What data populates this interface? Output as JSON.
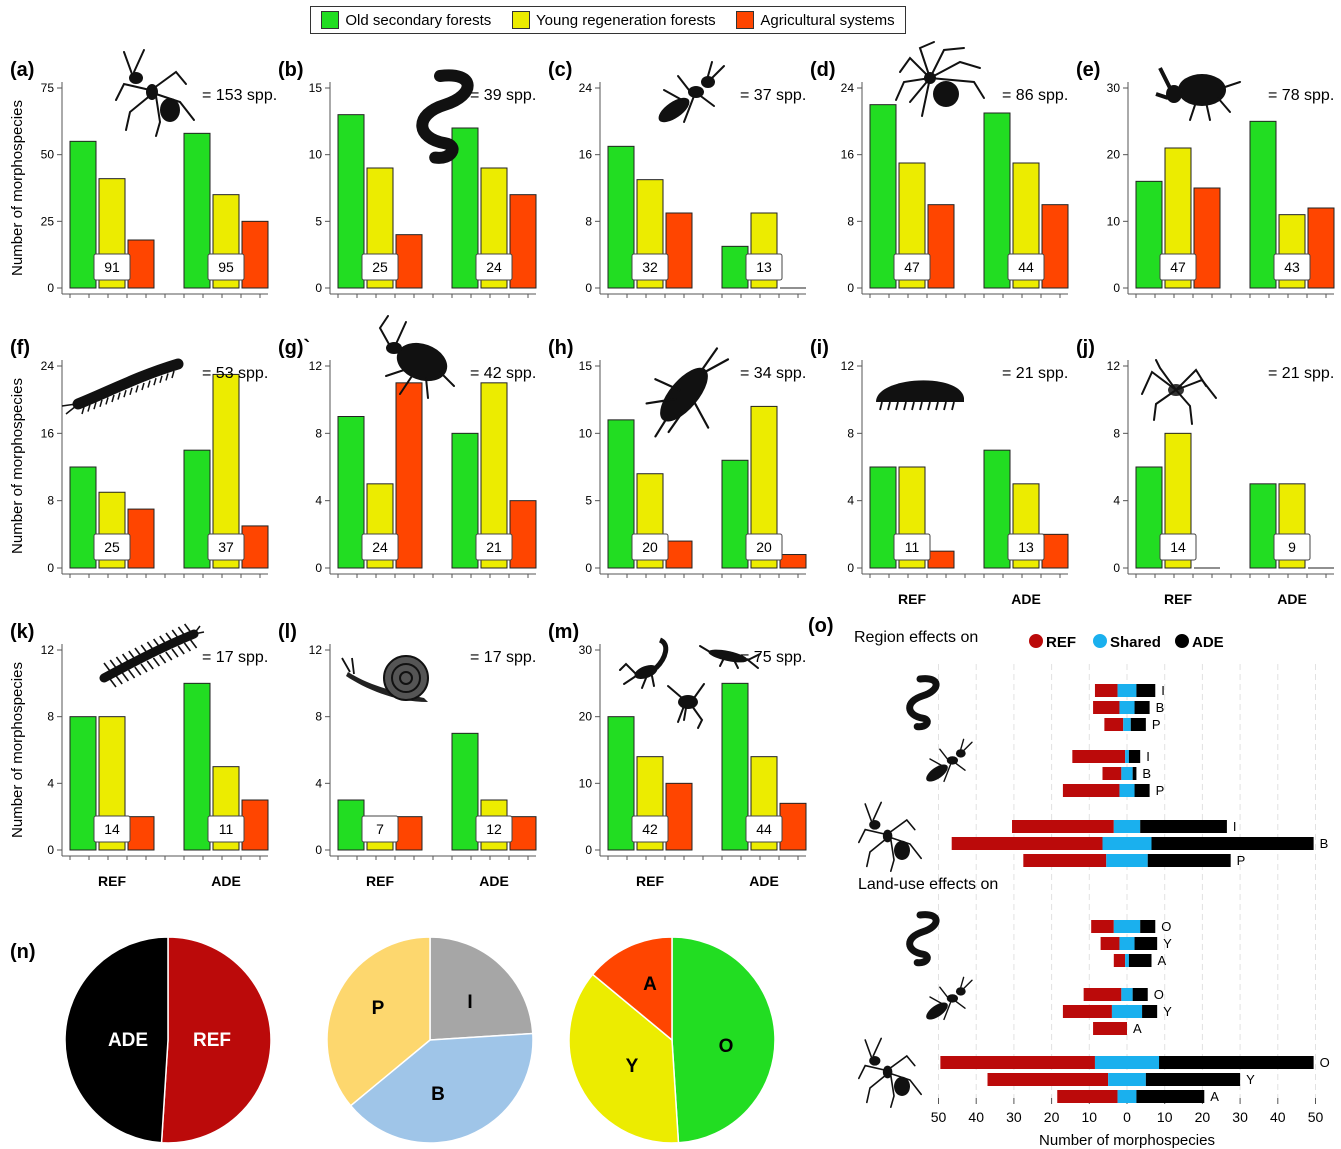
{
  "legend": [
    {
      "label": "Old secondary forests",
      "color": "#22dd22"
    },
    {
      "label": "Young regeneration forests",
      "color": "#ecec00"
    },
    {
      "label": "Agricultural systems",
      "color": "#ff4500"
    }
  ],
  "colors": {
    "O": "#22dd22",
    "Y": "#ecec00",
    "A": "#ff4500",
    "REF": "#bb0a0a",
    "Shared": "#1ab0ee",
    "ADE": "#000000",
    "P": "#fdd76e",
    "I": "#a6a6a6",
    "B": "#9fc5e8"
  },
  "ylabel": "Number of morphospecies",
  "region_labels": [
    "REF",
    "ADE"
  ],
  "chart_data": [
    {
      "id": "(a)",
      "type": "bar",
      "species": "= 153 spp.",
      "icon": "ant-icon",
      "yticks": [
        "0",
        "25",
        "50",
        "75"
      ],
      "ylim": [
        0,
        75
      ],
      "categories": [
        "REF",
        "ADE"
      ],
      "series": [
        {
          "values": [
            55,
            58
          ]
        },
        {
          "values": [
            41,
            35
          ]
        },
        {
          "values": [
            18,
            25
          ]
        }
      ],
      "boxes": [
        "91",
        "95"
      ]
    },
    {
      "id": "(b)",
      "type": "bar",
      "species": "= 39 spp.",
      "icon": "earthworm-icon",
      "yticks": [
        "0",
        "5",
        "10",
        "15"
      ],
      "ylim": [
        0,
        15
      ],
      "categories": [
        "REF",
        "ADE"
      ],
      "series": [
        {
          "values": [
            13,
            12
          ]
        },
        {
          "values": [
            9,
            9
          ]
        },
        {
          "values": [
            4,
            7
          ]
        }
      ],
      "boxes": [
        "25",
        "24"
      ]
    },
    {
      "id": "(c)",
      "type": "bar",
      "species": "= 37 spp.",
      "icon": "termite-icon",
      "yticks": [
        "0",
        "8",
        "16",
        "24"
      ],
      "ylim": [
        0,
        24
      ],
      "categories": [
        "REF",
        "ADE"
      ],
      "series": [
        {
          "values": [
            17,
            5
          ]
        },
        {
          "values": [
            13,
            9
          ]
        },
        {
          "values": [
            9,
            0
          ]
        }
      ],
      "boxes": [
        "32",
        "13"
      ]
    },
    {
      "id": "(d)",
      "type": "bar",
      "species": "= 86 spp.",
      "icon": "spider-icon",
      "yticks": [
        "0",
        "8",
        "16",
        "24"
      ],
      "ylim": [
        0,
        24
      ],
      "categories": [
        "REF",
        "ADE"
      ],
      "series": [
        {
          "values": [
            22,
            21
          ]
        },
        {
          "values": [
            15,
            15
          ]
        },
        {
          "values": [
            10,
            10
          ]
        }
      ],
      "boxes": [
        "47",
        "44"
      ]
    },
    {
      "id": "(e)",
      "type": "bar",
      "species": "= 78 spp.",
      "icon": "beetle-icon",
      "yticks": [
        "0",
        "10",
        "20",
        "30"
      ],
      "ylim": [
        0,
        30
      ],
      "categories": [
        "REF",
        "ADE"
      ],
      "series": [
        {
          "values": [
            16,
            25
          ]
        },
        {
          "values": [
            21,
            11
          ]
        },
        {
          "values": [
            15,
            12
          ]
        }
      ],
      "boxes": [
        "47",
        "43"
      ]
    },
    {
      "id": "(f)",
      "type": "bar",
      "species": "= 53 spp.",
      "icon": "millipede-icon",
      "yticks": [
        "0",
        "8",
        "16",
        "24"
      ],
      "ylim": [
        0,
        24
      ],
      "categories": [
        "REF",
        "ADE"
      ],
      "series": [
        {
          "values": [
            12,
            14
          ]
        },
        {
          "values": [
            9,
            23
          ]
        },
        {
          "values": [
            7,
            5
          ]
        }
      ],
      "boxes": [
        "25",
        "37"
      ]
    },
    {
      "id": "(g)`",
      "type": "bar",
      "species": "= 42 spp.",
      "icon": "bug-icon",
      "yticks": [
        "0",
        "4",
        "8",
        "12"
      ],
      "ylim": [
        0,
        12
      ],
      "categories": [
        "REF",
        "ADE"
      ],
      "series": [
        {
          "values": [
            9,
            8
          ]
        },
        {
          "values": [
            5,
            11
          ]
        },
        {
          "values": [
            11,
            4
          ]
        }
      ],
      "boxes": [
        "24",
        "21"
      ]
    },
    {
      "id": "(h)",
      "type": "bar",
      "species": "= 34 spp.",
      "icon": "cockroach-icon",
      "yticks": [
        "0",
        "5",
        "10",
        "15"
      ],
      "ylim": [
        0,
        15
      ],
      "categories": [
        "REF",
        "ADE"
      ],
      "series": [
        {
          "values": [
            11,
            8
          ]
        },
        {
          "values": [
            7,
            12
          ]
        },
        {
          "values": [
            2,
            1
          ]
        }
      ],
      "boxes": [
        "20",
        "20"
      ]
    },
    {
      "id": "(i)",
      "type": "bar",
      "species": "= 21 spp.",
      "icon": "woodlouse-icon",
      "yticks": [
        "0",
        "4",
        "8",
        "12"
      ],
      "ylim": [
        0,
        12
      ],
      "categories": [
        "REF",
        "ADE"
      ],
      "series": [
        {
          "values": [
            6,
            7
          ]
        },
        {
          "values": [
            6,
            5
          ]
        },
        {
          "values": [
            1,
            2
          ]
        }
      ],
      "boxes": [
        "11",
        "13"
      ]
    },
    {
      "id": "(j)",
      "type": "bar",
      "species": "= 21 spp.",
      "icon": "harvestman-icon",
      "yticks": [
        "0",
        "4",
        "8",
        "12"
      ],
      "ylim": [
        0,
        12
      ],
      "categories": [
        "REF",
        "ADE"
      ],
      "series": [
        {
          "values": [
            6,
            5
          ]
        },
        {
          "values": [
            8,
            5
          ]
        },
        {
          "values": [
            0,
            0
          ]
        }
      ],
      "boxes": [
        "14",
        "9"
      ]
    },
    {
      "id": "(k)",
      "type": "bar",
      "species": "= 17 spp.",
      "icon": "centipede-icon",
      "yticks": [
        "0",
        "4",
        "8",
        "12"
      ],
      "ylim": [
        0,
        12
      ],
      "categories": [
        "REF",
        "ADE"
      ],
      "series": [
        {
          "values": [
            8,
            10
          ]
        },
        {
          "values": [
            8,
            5
          ]
        },
        {
          "values": [
            2,
            3
          ]
        }
      ],
      "boxes": [
        "14",
        "11"
      ]
    },
    {
      "id": "(l)",
      "type": "bar",
      "species": "= 17 spp.",
      "icon": "snail-icon",
      "yticks": [
        "0",
        "4",
        "8",
        "12"
      ],
      "ylim": [
        0,
        12
      ],
      "categories": [
        "REF",
        "ADE"
      ],
      "series": [
        {
          "values": [
            3,
            7
          ]
        },
        {
          "values": [
            2,
            3
          ]
        },
        {
          "values": [
            2,
            2
          ]
        }
      ],
      "boxes": [
        "7",
        "12"
      ]
    },
    {
      "id": "(m)",
      "type": "bar",
      "species": "= 75 spp.",
      "icon": "scorpion-earwig-cricket-icon",
      "yticks": [
        "0",
        "10",
        "20",
        "30"
      ],
      "ylim": [
        0,
        30
      ],
      "categories": [
        "REF",
        "ADE"
      ],
      "series": [
        {
          "values": [
            20,
            25
          ]
        },
        {
          "values": [
            14,
            14
          ]
        },
        {
          "values": [
            10,
            7
          ]
        }
      ],
      "boxes": [
        "42",
        "44"
      ]
    },
    {
      "id": "(n)",
      "type": "pie",
      "pies": [
        {
          "slices": [
            {
              "label": "REF",
              "value": 51,
              "color": "#bb0a0a"
            },
            {
              "label": "ADE",
              "value": 49,
              "color": "#000000"
            }
          ]
        },
        {
          "slices": [
            {
              "label": "I",
              "value": 24,
              "color": "#a6a6a6"
            },
            {
              "label": "B",
              "value": 40,
              "color": "#9fc5e8"
            },
            {
              "label": "P",
              "value": 36,
              "color": "#fdd76e"
            }
          ]
        },
        {
          "slices": [
            {
              "label": "O",
              "value": 49,
              "color": "#22dd22"
            },
            {
              "label": "Y",
              "value": 37,
              "color": "#ecec00"
            },
            {
              "label": "A",
              "value": 14,
              "color": "#ff4500"
            }
          ]
        }
      ]
    },
    {
      "id": "(o)",
      "type": "bar",
      "orientation": "diverging-stacked",
      "xlabel": "Number of morphospecies",
      "xticks": [
        "50",
        "40",
        "30",
        "20",
        "10",
        "0",
        "10",
        "20",
        "30",
        "40",
        "50"
      ],
      "xlim": [
        -50,
        50
      ],
      "legend": [
        "REF",
        "Shared",
        "ADE"
      ],
      "sections": [
        {
          "title": "Region effects on",
          "groups": [
            {
              "icon": "earthworm-icon",
              "rows": [
                {
                  "label": "I",
                  "ref": 6,
                  "shared": 5,
                  "ade": 5
                },
                {
                  "label": "B",
                  "ref": 7,
                  "shared": 4,
                  "ade": 4
                },
                {
                  "label": "P",
                  "ref": 5,
                  "shared": 2,
                  "ade": 4
                }
              ]
            },
            {
              "icon": "termite-icon",
              "rows": [
                {
                  "label": "I",
                  "ref": 14,
                  "shared": 1,
                  "ade": 3
                },
                {
                  "label": "B",
                  "ref": 5,
                  "shared": 3,
                  "ade": 1
                },
                {
                  "label": "P",
                  "ref": 15,
                  "shared": 4,
                  "ade": 4
                }
              ]
            },
            {
              "icon": "ant-icon",
              "rows": [
                {
                  "label": "I",
                  "ref": 27,
                  "shared": 7,
                  "ade": 23
                },
                {
                  "label": "B",
                  "ref": 40,
                  "shared": 13,
                  "ade": 43
                },
                {
                  "label": "P",
                  "ref": 22,
                  "shared": 11,
                  "ade": 22
                }
              ]
            }
          ]
        },
        {
          "title": "Land-use effects on",
          "groups": [
            {
              "icon": "earthworm-icon",
              "rows": [
                {
                  "label": "O",
                  "ref": 6,
                  "shared": 7,
                  "ade": 4
                },
                {
                  "label": "Y",
                  "ref": 5,
                  "shared": 4,
                  "ade": 6
                },
                {
                  "label": "A",
                  "ref": 3,
                  "shared": 1,
                  "ade": 6
                }
              ]
            },
            {
              "icon": "termite-icon",
              "rows": [
                {
                  "label": "O",
                  "ref": 10,
                  "shared": 3,
                  "ade": 4
                },
                {
                  "label": "Y",
                  "ref": 13,
                  "shared": 8,
                  "ade": 4
                },
                {
                  "label": "A",
                  "ref": 9,
                  "shared": 0,
                  "ade": 0
                }
              ]
            },
            {
              "icon": "ant-icon",
              "rows": [
                {
                  "label": "O",
                  "ref": 41,
                  "shared": 17,
                  "ade": 41
                },
                {
                  "label": "Y",
                  "ref": 32,
                  "shared": 10,
                  "ade": 25
                },
                {
                  "label": "A",
                  "ref": 16,
                  "shared": 5,
                  "ade": 18
                }
              ]
            }
          ]
        }
      ]
    }
  ]
}
